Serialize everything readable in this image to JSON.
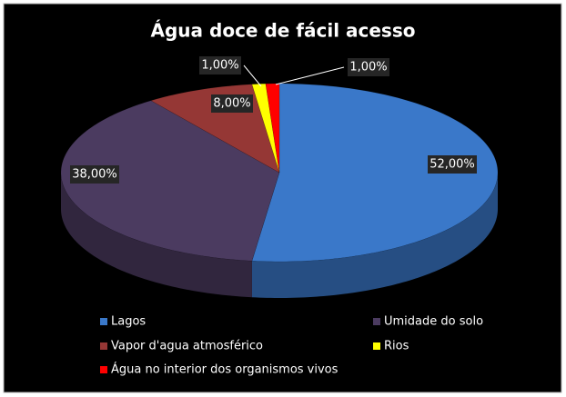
{
  "chart_data": {
    "type": "pie3d",
    "title": "Água doce de fácil acesso",
    "categories": [
      "Lagos",
      "Umidade do solo",
      "Vapor d'agua atmosférico",
      "Rios",
      "Água no interior dos organismos vivos"
    ],
    "values": [
      52,
      38,
      8,
      1,
      1
    ],
    "value_labels": [
      "52,00%",
      "38,00%",
      "8,00%",
      "1,00%",
      "1,00%"
    ],
    "colors": [
      "#3a78c9",
      "#4b3b60",
      "#953735",
      "#ffff00",
      "#ff0000"
    ],
    "legend": "bottom"
  }
}
